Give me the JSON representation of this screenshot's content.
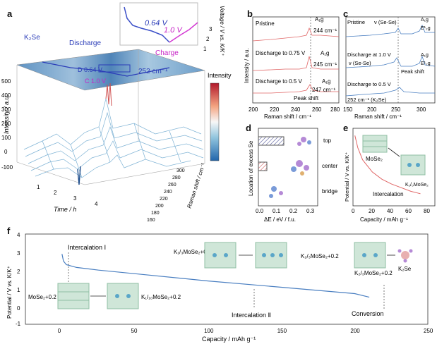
{
  "figure": {
    "panels": {
      "a": {
        "letter": "a",
        "inset": {
          "voltage_label": "Voltage / V vs. K/K⁺",
          "ticks": [
            "3",
            "2",
            "1"
          ],
          "v1": "0.64 V",
          "v2": "1.0 V"
        },
        "k2se": "K₂Se",
        "discharge": "Discharge",
        "charge": "Charge",
        "d_label": "D 0.64 V",
        "c_label": "C 1.0 V",
        "peak": "252 cm⁻¹",
        "colorbar_label": "Intensity",
        "z_label": "Intensity / a.u.",
        "z_ticks": [
          "500",
          "400",
          "300",
          "200",
          "100",
          "0",
          "-100"
        ],
        "time_label": "Time / h",
        "time_ticks": [
          "1",
          "2",
          "3",
          "4"
        ],
        "raman_label": "Raman shift / cm⁻¹",
        "raman_ticks": [
          "300",
          "280",
          "260",
          "240",
          "220",
          "200",
          "180",
          "160"
        ]
      },
      "b": {
        "letter": "b",
        "ylabel": "Intensity / a.u.",
        "xlabel": "Raman shift / cm⁻¹",
        "xticks": [
          "200",
          "220",
          "240",
          "260",
          "280"
        ],
        "traces": [
          {
            "label": "Pristine",
            "mode": "A₁g",
            "peak": "244 cm⁻¹"
          },
          {
            "label": "Discharge to 0.75 V",
            "mode": "A₁g",
            "peak": "245 cm⁻¹"
          },
          {
            "label": "Discharge to 0.5 V",
            "mode": "A₁g",
            "peak": "247 cm⁻¹"
          }
        ],
        "peak_shift": "Peak shift"
      },
      "c": {
        "letter": "c",
        "xlabel": "Raman shift / cm⁻¹",
        "xticks": [
          "150",
          "200",
          "250",
          "300"
        ],
        "traces": [
          {
            "label": "Pristine",
            "note": "ν (Se-Se)",
            "m1": "A₁g",
            "m2": "E¹₂g"
          },
          {
            "label": "Discharge at 1.0 V",
            "note": "ν (Se-Se)",
            "m1": "A₁g",
            "m2": "E¹₂g"
          },
          {
            "label": "Discharge to 0.5 V",
            "note": "252 cm⁻¹ (K₂Se)",
            "m1": "",
            "m2": ""
          }
        ],
        "peak_shift": "Peak shift"
      },
      "d": {
        "letter": "d",
        "ylabel": "Location of excess Se",
        "xlabel": "ΔE / eV / f.u.",
        "xticks": [
          "0.0",
          "0.1",
          "0.2",
          "0.3"
        ],
        "locations": [
          "top",
          "center",
          "bridge"
        ],
        "chart_data": {
          "type": "bar",
          "categories": [
            "top",
            "center",
            "bridge"
          ],
          "values": [
            0.15,
            0.05,
            0.0
          ],
          "xlabel": "ΔE / eV / f.u.",
          "ylabel": "Location of excess Se",
          "xlim": [
            0,
            0.35
          ]
        }
      },
      "e": {
        "letter": "e",
        "ylabel": "Potential / V vs. K/K⁺",
        "xlabel": "Capacity / mAh g⁻¹",
        "xticks": [
          "0",
          "20",
          "40",
          "60",
          "80"
        ],
        "mose2": "MoSe₂",
        "k_mose2": "K₁/₀MoSe₂",
        "intercalation": "Intercalation",
        "chart_data": {
          "type": "line",
          "x": [
            2,
            5,
            10,
            20,
            30,
            40,
            50,
            60,
            70
          ],
          "y": [
            2.9,
            2.4,
            1.9,
            1.4,
            1.1,
            0.9,
            0.75,
            0.6,
            0.5
          ],
          "xlabel": "Capacity / mAh g⁻¹",
          "ylabel": "Potential / V vs. K/K⁺",
          "xlim": [
            0,
            85
          ]
        }
      },
      "f": {
        "letter": "f",
        "ylabel": "Potential / V vs. K/K⁺",
        "xlabel": "Capacity / mAh g⁻¹",
        "xticks": [
          "0",
          "50",
          "100",
          "150",
          "200",
          "250"
        ],
        "yticks": [
          "4",
          "3",
          "2",
          "1",
          "0",
          "-1"
        ],
        "intercalation1": "Intercalation Ⅰ",
        "intercalation2": "Intercalation Ⅱ",
        "conversion": "Conversion",
        "mose2": "MoSe₂+0.2",
        "k110": "K₁/₁₀MoSe₂+0.2",
        "k13": "K₁/₃MoSe₂+0.2",
        "k23": "K₂/₃MoSe₂+0.2",
        "k23b": "K₂/₃MoSe₂+0.2",
        "k2se": "K₂Se",
        "chart_data": {
          "type": "line",
          "x": [
            0,
            1,
            3,
            10,
            25,
            50,
            100,
            150,
            200,
            210
          ],
          "y": [
            2.9,
            2.5,
            2.3,
            2.15,
            2.0,
            1.8,
            1.4,
            1.05,
            0.7,
            0.5
          ],
          "xlabel": "Capacity / mAh g⁻¹",
          "ylabel": "Potential / V vs. K/K⁺",
          "xlim": [
            -25,
            250
          ],
          "ylim": [
            -1,
            4
          ]
        }
      }
    }
  }
}
